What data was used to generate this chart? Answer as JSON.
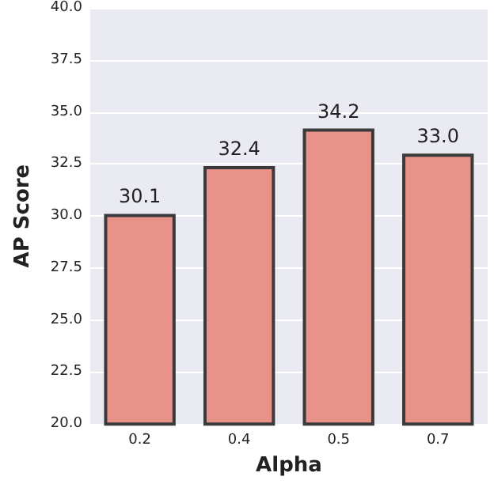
{
  "chart_data": {
    "type": "bar",
    "xlabel": "Alpha",
    "ylabel": "AP Score",
    "categories": [
      "0.2",
      "0.4",
      "0.5",
      "0.7"
    ],
    "values": [
      30.1,
      32.4,
      34.2,
      33.0
    ],
    "value_labels": [
      "30.1",
      "32.4",
      "34.2",
      "33.0"
    ],
    "color": "#e8928a",
    "ylim": [
      20,
      40
    ],
    "yticks": [
      {
        "value": 20,
        "label": "20.0"
      },
      {
        "value": 22.5,
        "label": "22.5"
      },
      {
        "value": 25,
        "label": "25.0"
      },
      {
        "value": 27.5,
        "label": "27.5"
      },
      {
        "value": 30,
        "label": "30.0"
      },
      {
        "value": 32.5,
        "label": "32.5"
      },
      {
        "value": 35,
        "label": "35.0"
      },
      {
        "value": 37.5,
        "label": "37.5"
      },
      {
        "value": 40,
        "label": "40.0"
      }
    ],
    "grid": "y"
  }
}
